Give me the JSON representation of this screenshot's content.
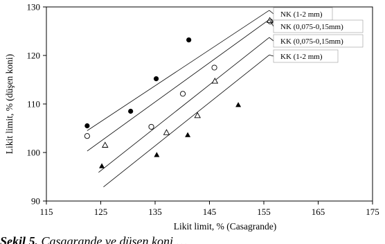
{
  "chart_data": {
    "type": "scatter",
    "xlabel": "Likit limit, % (Casagrande)",
    "ylabel": "Likit limit, % (düşen koni)",
    "xlim": [
      115,
      175
    ],
    "ylim": [
      90,
      130
    ],
    "xticks": [
      "115",
      "125",
      "135",
      "145",
      "155",
      "165",
      "175"
    ],
    "yticks": [
      "90",
      "100",
      "110",
      "120",
      "130"
    ],
    "grid": false,
    "series": [
      {
        "name": "NK (1-2 mm)",
        "marker": "filled-circle",
        "points": [
          [
            122.5,
            105.5
          ],
          [
            130.5,
            108.5
          ],
          [
            135.2,
            115.2
          ],
          [
            141.2,
            123.2
          ]
        ],
        "line": [
          [
            122.5,
            104.5
          ],
          [
            156,
            129.3
          ]
        ]
      },
      {
        "name": "NK (0,075-0,15mm)",
        "marker": "open-circle",
        "points": [
          [
            122.5,
            103.4
          ],
          [
            134.3,
            105.3
          ],
          [
            140.1,
            112.1
          ],
          [
            145.9,
            117.5
          ],
          [
            156.2,
            127
          ]
        ],
        "line": [
          [
            122.5,
            100.3
          ],
          [
            156,
            127.4
          ]
        ]
      },
      {
        "name": "KK (0,075-0,15mm)",
        "marker": "open-triangle",
        "points": [
          [
            125.8,
            101.5
          ],
          [
            137.1,
            104.1
          ],
          [
            142.8,
            107.6
          ],
          [
            146,
            114.7
          ],
          [
            156.1,
            127.2
          ]
        ],
        "line": [
          [
            124.6,
            95.9
          ],
          [
            156,
            123.7
          ]
        ]
      },
      {
        "name": "KK (1-2 mm)",
        "marker": "filled-triangle",
        "points": [
          [
            125.2,
            97.2
          ],
          [
            135.3,
            99.5
          ],
          [
            141,
            103.6
          ],
          [
            150.3,
            109.8
          ]
        ],
        "line": [
          [
            125.5,
            92.9
          ],
          [
            156,
            120.1
          ]
        ]
      }
    ],
    "legend_placement": "top-right"
  },
  "caption": {
    "label": "Şekil 5.",
    "text": " Casagrande ve düşen koni …"
  }
}
